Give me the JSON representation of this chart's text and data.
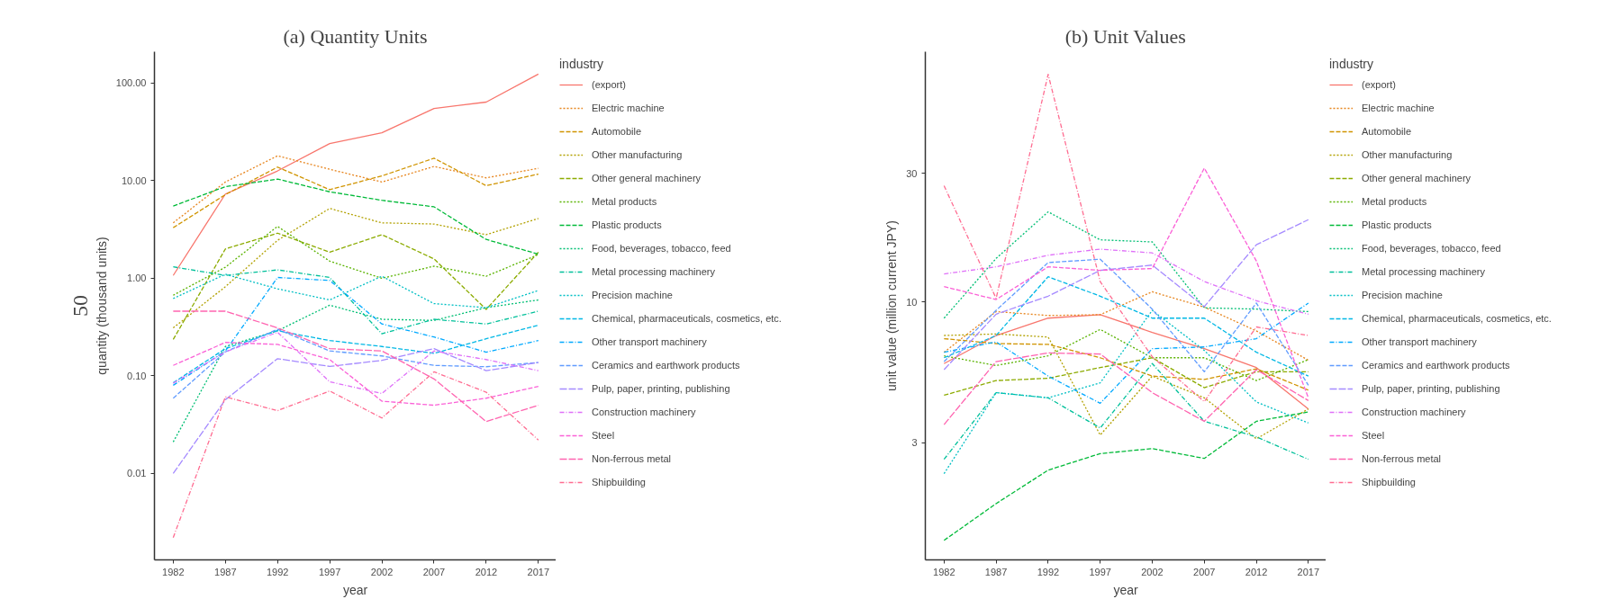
{
  "chart_data": [
    {
      "type": "line",
      "title": "(a) Quantity Units",
      "xlabel": "year",
      "ylabel": "quantity (thousand units)",
      "legend_title": "industry",
      "legend": "right",
      "log": true,
      "grid": false,
      "annotations": [
        "50"
      ],
      "x": [
        1982,
        1987,
        1992,
        1997,
        2002,
        2007,
        2012,
        2017
      ],
      "xlim": [
        1980.2,
        2018.7
      ],
      "xticks": [
        1982,
        1987,
        1992,
        1997,
        2002,
        2007,
        2012,
        2017
      ],
      "ylim": [
        0.0013,
        210
      ],
      "yticks": [
        {
          "value": 0.01,
          "label": "0.01"
        },
        {
          "value": 0.1,
          "label": "0.10"
        },
        {
          "value": 1,
          "label": "1.00"
        },
        {
          "value": 10,
          "label": "10.00"
        },
        {
          "value": 100,
          "label": "100.00"
        }
      ],
      "series": [
        {
          "name": "(export)",
          "color": "#f8766d",
          "line_style": "solid",
          "values": [
            1.07,
            7.3,
            12.6,
            24,
            31,
            55,
            64,
            124
          ]
        },
        {
          "name": "Electric machine",
          "color": "#e7851e",
          "line_style": "dotted",
          "values": [
            3.7,
            9.7,
            18,
            13.1,
            9.7,
            14,
            10.7,
            13.4
          ]
        },
        {
          "name": "Automobile",
          "color": "#d09400",
          "line_style": "dashed",
          "values": [
            3.3,
            7.2,
            13.8,
            8.1,
            11.2,
            17,
            8.9,
            11.7
          ]
        },
        {
          "name": "Other manufacturing",
          "color": "#b2a100",
          "line_style": "dotted",
          "values": [
            0.31,
            0.82,
            2.45,
            5.2,
            3.7,
            3.6,
            2.8,
            4.1
          ]
        },
        {
          "name": "Other general machinery",
          "color": "#8cab00",
          "line_style": "dashed",
          "values": [
            0.236,
            2.0,
            2.9,
            1.85,
            2.8,
            1.58,
            0.48,
            1.85
          ]
        },
        {
          "name": "Metal products",
          "color": "#5ab300",
          "line_style": "dotted",
          "values": [
            0.67,
            1.3,
            3.4,
            1.5,
            1.0,
            1.33,
            1.05,
            1.75
          ]
        },
        {
          "name": "Plastic products",
          "color": "#00ba38",
          "line_style": "dashed",
          "values": [
            5.5,
            8.7,
            10.4,
            7.7,
            6.3,
            5.4,
            2.5,
            1.77
          ]
        },
        {
          "name": "Food, beverages, tobacco, feed",
          "color": "#00bf74",
          "line_style": "dotted",
          "values": [
            0.021,
            0.2,
            0.29,
            0.53,
            0.38,
            0.37,
            0.5,
            0.6
          ]
        },
        {
          "name": "Metal processing machinery",
          "color": "#00c09a",
          "line_style": "dashdot",
          "values": [
            1.31,
            1.07,
            1.22,
            1.02,
            0.27,
            0.38,
            0.34,
            0.46
          ]
        },
        {
          "name": "Precision machine",
          "color": "#00bfc4",
          "line_style": "dotted",
          "values": [
            0.62,
            1.1,
            0.78,
            0.6,
            1.05,
            0.55,
            0.5,
            0.75
          ]
        },
        {
          "name": "Chemical, pharmaceuticals, cosmetics, etc.",
          "color": "#00b8e5",
          "line_style": "dashed",
          "values": [
            0.085,
            0.19,
            0.29,
            0.23,
            0.2,
            0.17,
            0.24,
            0.33
          ]
        },
        {
          "name": "Other transport machinery",
          "color": "#00a9ff",
          "line_style": "dashdot",
          "values": [
            0.08,
            0.18,
            1.02,
            0.95,
            0.34,
            0.25,
            0.175,
            0.23
          ]
        },
        {
          "name": "Ceramics and earthwork products",
          "color": "#619cff",
          "line_style": "dashed",
          "values": [
            0.059,
            0.176,
            0.3,
            0.18,
            0.16,
            0.128,
            0.124,
            0.137
          ]
        },
        {
          "name": "Pulp, paper, printing, publishing",
          "color": "#a58aff",
          "line_style": "longdash",
          "values": [
            0.01,
            0.057,
            0.15,
            0.125,
            0.144,
            0.19,
            0.113,
            0.137
          ]
        },
        {
          "name": "Construction machinery",
          "color": "#df70f8",
          "line_style": "dashdot",
          "values": [
            0.084,
            0.176,
            0.28,
            0.087,
            0.066,
            0.18,
            0.147,
            0.113
          ]
        },
        {
          "name": "Steel",
          "color": "#fb61d7",
          "line_style": "dashed",
          "values": [
            0.128,
            0.22,
            0.21,
            0.147,
            0.055,
            0.05,
            0.059,
            0.078
          ]
        },
        {
          "name": "Non-ferrous metal",
          "color": "#ff64b0",
          "line_style": "longdash",
          "values": [
            0.46,
            0.46,
            0.31,
            0.19,
            0.18,
            0.093,
            0.034,
            0.05
          ]
        },
        {
          "name": "Shipbuilding",
          "color": "#ff6c91",
          "line_style": "dashdot",
          "values": [
            0.0022,
            0.061,
            0.044,
            0.07,
            0.037,
            0.11,
            0.068,
            0.022
          ]
        }
      ]
    },
    {
      "type": "line",
      "title": "(b) Unit Values",
      "xlabel": "year",
      "ylabel": "unit value (million current JPY)",
      "legend_title": "industry",
      "legend": "right",
      "log": true,
      "grid": false,
      "x": [
        1982,
        1987,
        1992,
        1997,
        2002,
        2007,
        2012,
        2017
      ],
      "xlim": [
        1980.2,
        2018.7
      ],
      "xticks": [
        1982,
        1987,
        1992,
        1997,
        2002,
        2007,
        2012,
        2017
      ],
      "ylim": [
        1.1,
        85
      ],
      "yticks": [
        3,
        10,
        30
      ],
      "series": [
        {
          "name": "(export)",
          "color": "#f8766d",
          "line_style": "solid",
          "values": [
            5.9,
            7.5,
            8.7,
            8.96,
            7.7,
            6.7,
            5.7,
            4.0
          ]
        },
        {
          "name": "Electric machine",
          "color": "#e7851e",
          "line_style": "dotted",
          "values": [
            6.5,
            9.2,
            8.9,
            8.96,
            10.9,
            9.56,
            7.8,
            6.07
          ]
        },
        {
          "name": "Automobile",
          "color": "#d09400",
          "line_style": "dashed",
          "values": [
            7.3,
            7.0,
            6.95,
            6.2,
            5.3,
            5.15,
            5.64,
            4.7
          ]
        },
        {
          "name": "Other manufacturing",
          "color": "#b2a100",
          "line_style": "dotted",
          "values": [
            7.5,
            7.6,
            7.4,
            3.2,
            5.3,
            4.4,
            3.1,
            4.0
          ]
        },
        {
          "name": "Other general machinery",
          "color": "#8cab00",
          "line_style": "dashed",
          "values": [
            4.5,
            5.1,
            5.2,
            5.7,
            6.2,
            4.8,
            5.5,
            5.5
          ]
        },
        {
          "name": "Metal products",
          "color": "#5ab300",
          "line_style": "dotted",
          "values": [
            6.3,
            5.8,
            6.3,
            7.9,
            6.2,
            6.2,
            5.1,
            6.1
          ]
        },
        {
          "name": "Plastic products",
          "color": "#00ba38",
          "line_style": "dashed",
          "values": [
            1.3,
            1.78,
            2.37,
            2.73,
            2.85,
            2.62,
            3.6,
            3.9
          ]
        },
        {
          "name": "Food, beverages, tobacco, feed",
          "color": "#00bf74",
          "line_style": "dotted",
          "values": [
            8.7,
            14.5,
            21.6,
            17,
            16.7,
            9.5,
            9.4,
            9.2
          ]
        },
        {
          "name": "Metal processing machinery",
          "color": "#00c09a",
          "line_style": "dashdot",
          "values": [
            2.6,
            4.6,
            4.4,
            3.4,
            5.9,
            3.6,
            3.15,
            2.6
          ]
        },
        {
          "name": "Precision machine",
          "color": "#00bfc4",
          "line_style": "dotted",
          "values": [
            2.3,
            4.6,
            4.4,
            5.0,
            9.3,
            6.6,
            4.25,
            3.55
          ]
        },
        {
          "name": "Chemical, pharmaceuticals, cosmetics, etc.",
          "color": "#00b8e5",
          "line_style": "dashed",
          "values": [
            6.2,
            7.5,
            12.4,
            10.5,
            8.7,
            8.7,
            6.5,
            5.3
          ]
        },
        {
          "name": "Other transport machinery",
          "color": "#00a9ff",
          "line_style": "dashdot",
          "values": [
            6.5,
            7.1,
            5.3,
            4.2,
            6.7,
            6.8,
            7.3,
            9.9
          ]
        },
        {
          "name": "Ceramics and earthwork products",
          "color": "#619cff",
          "line_style": "dashed",
          "values": [
            6.0,
            9.3,
            14,
            14.4,
            9.4,
            5.5,
            9.9,
            4.9
          ]
        },
        {
          "name": "Pulp, paper, printing, publishing",
          "color": "#a58aff",
          "line_style": "longdash",
          "values": [
            5.6,
            9.0,
            10.5,
            13.1,
            13.7,
            9.6,
            16.3,
            20.2
          ]
        },
        {
          "name": "Construction machinery",
          "color": "#df70f8",
          "line_style": "dashdot",
          "values": [
            12.7,
            13.5,
            14.9,
            15.7,
            15.2,
            11.9,
            10.1,
            9.0
          ]
        },
        {
          "name": "Steel",
          "color": "#fb61d7",
          "line_style": "dashed",
          "values": [
            11.4,
            10.2,
            13.5,
            13.1,
            13.3,
            31.4,
            14.2,
            4.4
          ]
        },
        {
          "name": "Non-ferrous metal",
          "color": "#ff64b0",
          "line_style": "longdash",
          "values": [
            3.5,
            6.0,
            6.46,
            6.4,
            4.6,
            3.6,
            5.6,
            4.3
          ]
        },
        {
          "name": "Shipbuilding",
          "color": "#ff6c91",
          "line_style": "dashdot",
          "values": [
            27,
            10.3,
            70,
            11.9,
            6.25,
            4.26,
            8.07,
            7.5
          ]
        }
      ]
    }
  ]
}
